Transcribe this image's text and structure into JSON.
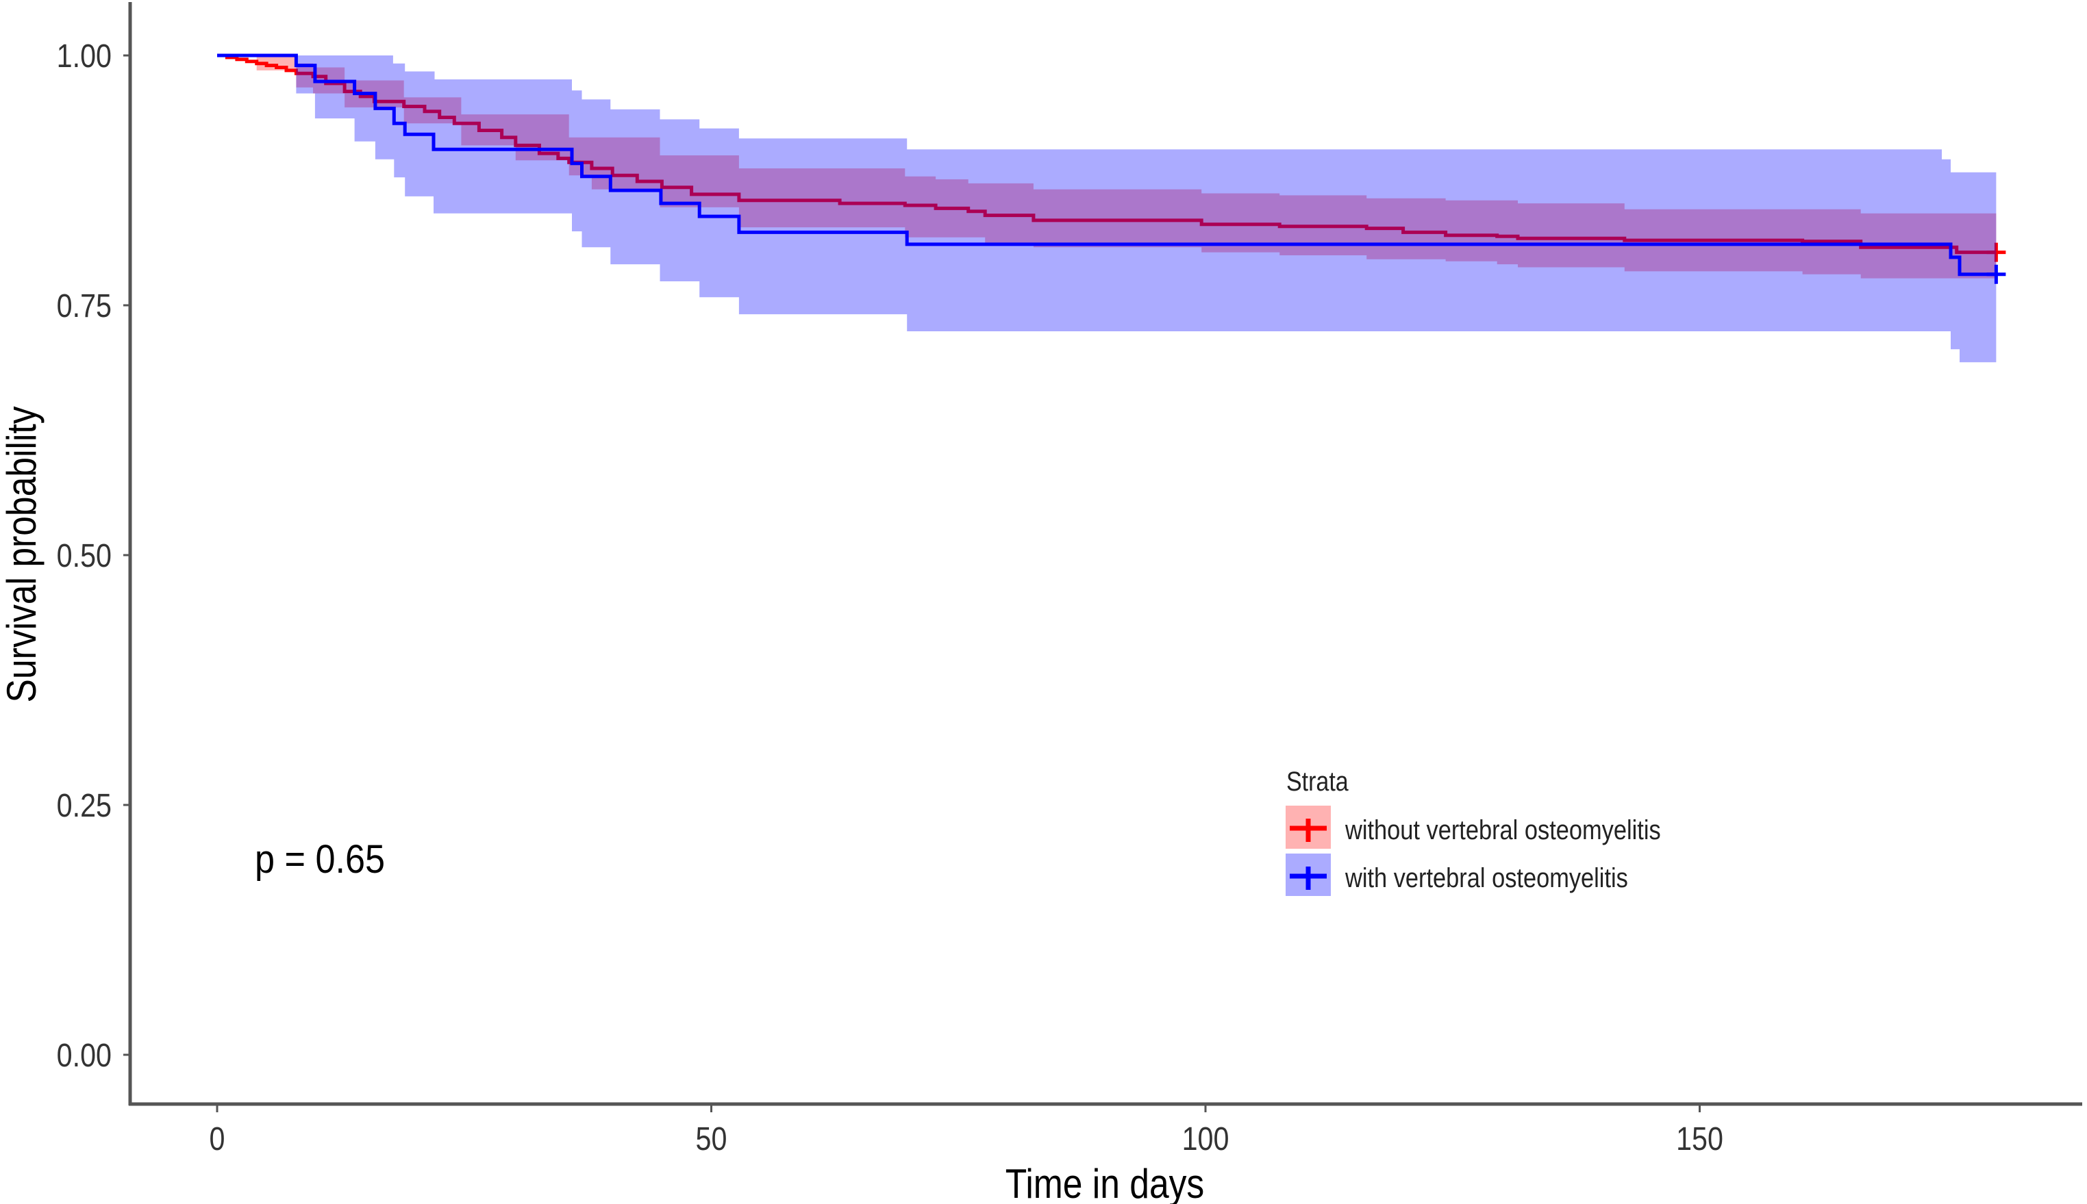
{
  "chart_data": {
    "type": "line",
    "subtype": "kaplan-meier-step",
    "title": "",
    "xlabel": "Time in days",
    "ylabel": "Survival probability",
    "xlim": [
      -9,
      189
    ],
    "ylim": [
      0,
      1
    ],
    "x_ticks": [
      0,
      50,
      100,
      150
    ],
    "x_tick_labels": [
      "0",
      "50",
      "100",
      "150"
    ],
    "y_ticks": [
      0,
      0.25,
      0.5,
      0.75,
      1.0
    ],
    "y_tick_labels": [
      "0.00",
      "0.25",
      "0.50",
      "0.75",
      "1.00"
    ],
    "grid": false,
    "annotation": "p = 0.65",
    "legend": {
      "title": "Strata",
      "placement": "center-right",
      "entries": [
        {
          "label": "without vertebral osteomyelitis",
          "color": "#FF0000"
        },
        {
          "label": "with vertebral osteomyelitis",
          "color": "#0000FF"
        }
      ]
    },
    "series": [
      {
        "name": "without vertebral osteomyelitis",
        "color": "#FF0000",
        "censor_marks": [
          {
            "t": 180,
            "s": 0.803
          }
        ],
        "steps": [
          [
            0,
            1.0
          ],
          [
            1,
            0.998
          ],
          [
            2,
            0.996
          ],
          [
            3,
            0.994
          ],
          [
            4,
            0.992
          ],
          [
            5,
            0.99
          ],
          [
            6,
            0.988
          ],
          [
            7,
            0.985
          ],
          [
            8,
            0.982
          ],
          [
            9.7,
            0.979
          ],
          [
            11,
            0.972
          ],
          [
            12.9,
            0.964
          ],
          [
            14.5,
            0.959
          ],
          [
            15.9,
            0.954
          ],
          [
            18.9,
            0.949
          ],
          [
            21,
            0.944
          ],
          [
            22.5,
            0.938
          ],
          [
            24,
            0.932
          ],
          [
            26.5,
            0.925
          ],
          [
            28.8,
            0.918
          ],
          [
            30.2,
            0.91
          ],
          [
            32.6,
            0.902
          ],
          [
            34.5,
            0.897
          ],
          [
            35.6,
            0.893
          ],
          [
            37.9,
            0.887
          ],
          [
            40,
            0.88
          ],
          [
            42.5,
            0.874
          ],
          [
            45,
            0.868
          ],
          [
            48,
            0.861
          ],
          [
            52.8,
            0.855
          ],
          [
            63,
            0.852
          ],
          [
            69.6,
            0.85
          ],
          [
            72.7,
            0.847
          ],
          [
            76,
            0.844
          ],
          [
            77.7,
            0.84
          ],
          [
            82.6,
            0.835
          ],
          [
            99.6,
            0.831
          ],
          [
            107.5,
            0.829
          ],
          [
            116.3,
            0.827
          ],
          [
            120,
            0.823
          ],
          [
            124.3,
            0.82
          ],
          [
            129.5,
            0.819
          ],
          [
            131.6,
            0.817
          ],
          [
            142.4,
            0.815
          ],
          [
            160.4,
            0.814
          ],
          [
            166.3,
            0.808
          ],
          [
            176,
            0.803
          ],
          [
            180,
            0.803
          ]
        ],
        "ci_upper": [
          [
            0,
            1.0
          ],
          [
            4,
            1.0
          ],
          [
            8,
            0.992
          ],
          [
            9.7,
            0.988
          ],
          [
            12.9,
            0.975
          ],
          [
            18.9,
            0.958
          ],
          [
            24.7,
            0.941
          ],
          [
            35.6,
            0.918
          ],
          [
            44.8,
            0.9
          ],
          [
            52.8,
            0.887
          ],
          [
            69.6,
            0.879
          ],
          [
            72.7,
            0.876
          ],
          [
            76,
            0.872
          ],
          [
            82.6,
            0.866
          ],
          [
            99.6,
            0.862
          ],
          [
            107.5,
            0.86
          ],
          [
            116.3,
            0.857
          ],
          [
            124.3,
            0.855
          ],
          [
            131.6,
            0.852
          ],
          [
            142.4,
            0.846
          ],
          [
            160.4,
            0.846
          ],
          [
            166.3,
            0.842
          ],
          [
            180,
            0.839
          ]
        ],
        "ci_lower": [
          [
            0,
            1.0
          ],
          [
            4,
            0.985
          ],
          [
            8,
            0.968
          ],
          [
            9.7,
            0.962
          ],
          [
            12.9,
            0.948
          ],
          [
            18.9,
            0.932
          ],
          [
            24.7,
            0.91
          ],
          [
            30.2,
            0.895
          ],
          [
            35.6,
            0.88
          ],
          [
            37.9,
            0.866
          ],
          [
            44.8,
            0.848
          ],
          [
            52.8,
            0.828
          ],
          [
            69.6,
            0.818
          ],
          [
            77.7,
            0.812
          ],
          [
            82.6,
            0.808
          ],
          [
            99.6,
            0.803
          ],
          [
            107.5,
            0.8
          ],
          [
            116.3,
            0.796
          ],
          [
            124.3,
            0.794
          ],
          [
            129.5,
            0.791
          ],
          [
            131.6,
            0.788
          ],
          [
            142.4,
            0.784
          ],
          [
            160.4,
            0.781
          ],
          [
            166.3,
            0.777
          ],
          [
            180,
            0.774
          ]
        ]
      },
      {
        "name": "with vertebral osteomyelitis",
        "color": "#0000FF",
        "censor_marks": [
          {
            "t": 180,
            "s": 0.781
          }
        ],
        "steps": [
          [
            0,
            1.0
          ],
          [
            8,
            0.99
          ],
          [
            9.9,
            0.974
          ],
          [
            13.9,
            0.962
          ],
          [
            16,
            0.947
          ],
          [
            17.9,
            0.932
          ],
          [
            19,
            0.921
          ],
          [
            21.9,
            0.906
          ],
          [
            35.9,
            0.892
          ],
          [
            36.9,
            0.879
          ],
          [
            39.8,
            0.865
          ],
          [
            44.9,
            0.852
          ],
          [
            48.8,
            0.839
          ],
          [
            52.8,
            0.823
          ],
          [
            69.8,
            0.811
          ],
          [
            175.4,
            0.798
          ],
          [
            176.3,
            0.781
          ],
          [
            180,
            0.781
          ]
        ],
        "ci_upper": [
          [
            0,
            1.0
          ],
          [
            17.8,
            0.992
          ],
          [
            19,
            0.984
          ],
          [
            22,
            0.976
          ],
          [
            35.9,
            0.965
          ],
          [
            36.9,
            0.956
          ],
          [
            39.8,
            0.946
          ],
          [
            44.8,
            0.936
          ],
          [
            48.8,
            0.927
          ],
          [
            52.8,
            0.917
          ],
          [
            69.8,
            0.906
          ],
          [
            174.5,
            0.896
          ],
          [
            175.4,
            0.883
          ],
          [
            180,
            0.883
          ]
        ],
        "ci_lower": [
          [
            0,
            1.0
          ],
          [
            8,
            0.962
          ],
          [
            9.9,
            0.937
          ],
          [
            13.9,
            0.914
          ],
          [
            16,
            0.896
          ],
          [
            17.9,
            0.878
          ],
          [
            19,
            0.859
          ],
          [
            21.9,
            0.842
          ],
          [
            35.9,
            0.824
          ],
          [
            36.9,
            0.808
          ],
          [
            39.8,
            0.791
          ],
          [
            44.8,
            0.774
          ],
          [
            48.8,
            0.758
          ],
          [
            52.8,
            0.741
          ],
          [
            69.8,
            0.724
          ],
          [
            175.4,
            0.706
          ],
          [
            176.3,
            0.693
          ],
          [
            180,
            0.693
          ]
        ]
      }
    ]
  },
  "colors": {
    "axis": "#555555",
    "red_line": "#FF0000",
    "blue_line": "#0000FF",
    "red_fill": "#FF0000",
    "blue_fill": "#0000FF"
  }
}
